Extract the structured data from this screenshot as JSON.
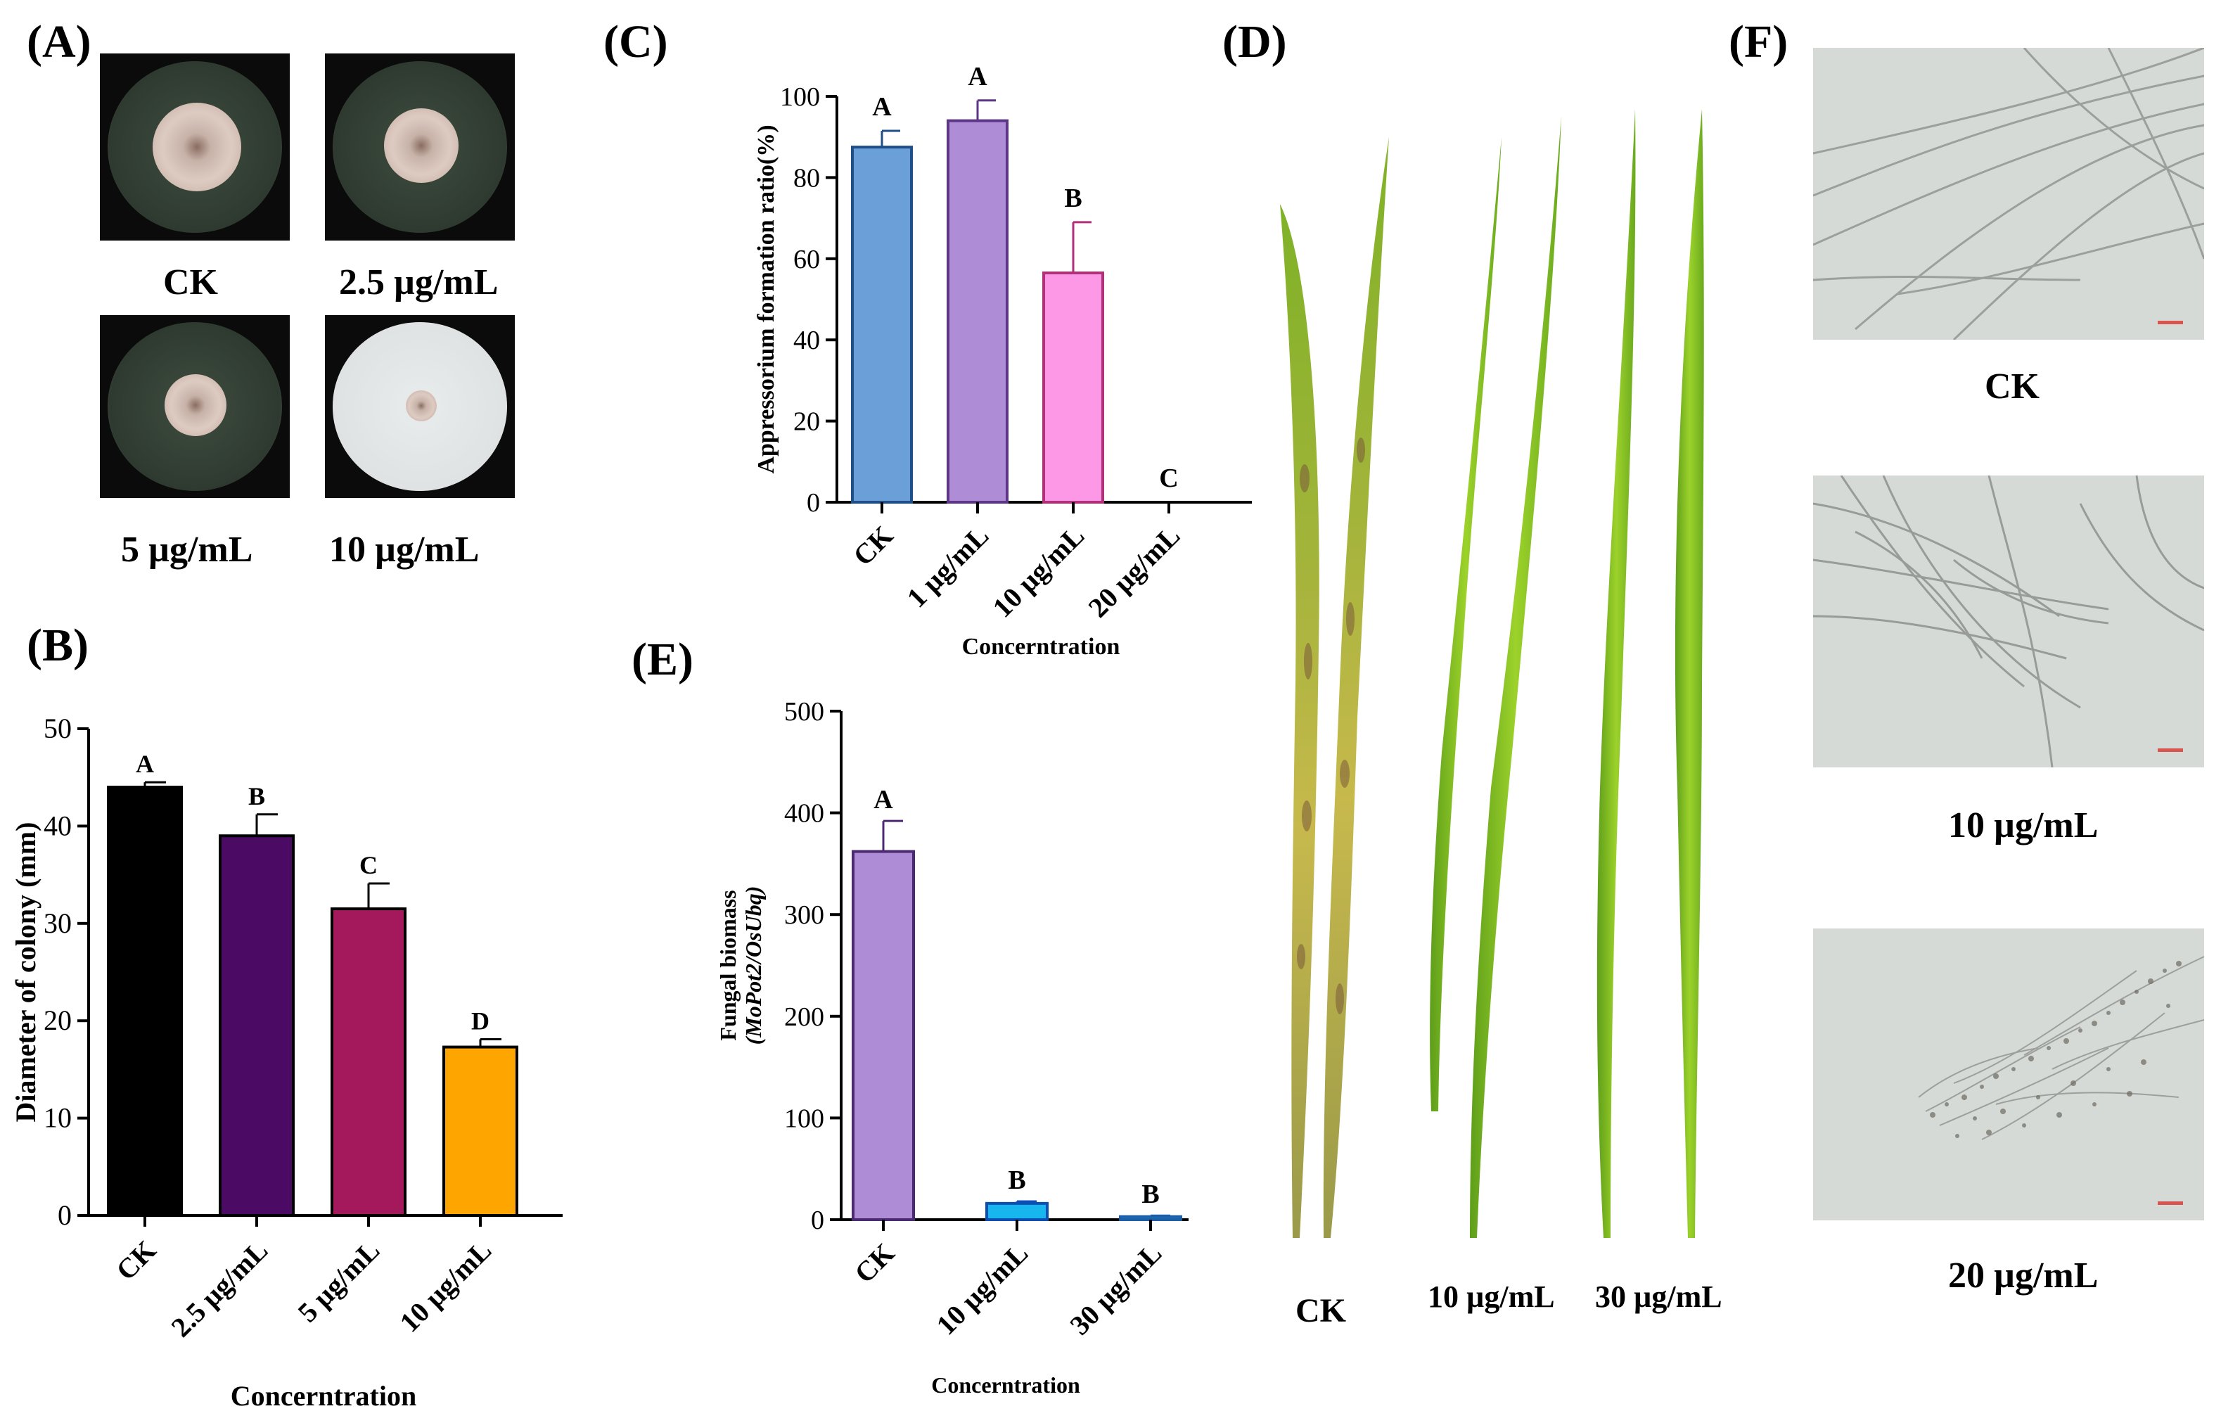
{
  "panels": {
    "a": {
      "label": "(A)",
      "captions": [
        "CK",
        "2.5 µg/mL",
        "5 µg/mL",
        "10 µg/mL"
      ]
    },
    "b": {
      "label": "(B)"
    },
    "c": {
      "label": "(C)"
    },
    "d": {
      "label": "(D)",
      "captions": [
        "CK",
        "10 µg/mL",
        "30 µg/mL"
      ]
    },
    "e": {
      "label": "(E)"
    },
    "f": {
      "label": "(F)",
      "captions": [
        "CK",
        "10 µg/mL",
        "20 µg/mL"
      ]
    }
  },
  "colors": {
    "b": [
      "#000000",
      "#4b0a63",
      "#a3195b",
      "#ffa500"
    ],
    "c": [
      "#6a9fd8",
      "#ae8cd6",
      "#fd98e6",
      "#ffffff"
    ],
    "c_edges": [
      "#1f4f86",
      "#5d3685",
      "#b0307a",
      "#333333"
    ],
    "e": [
      "#ae8cd6",
      "#17b6ef",
      "#1fa4d6"
    ],
    "e_edges": [
      "#4c2a73",
      "#0c4fb3",
      "#1c5fa8"
    ]
  },
  "chart_data": [
    {
      "id": "b",
      "type": "bar",
      "categories": [
        "CK",
        "2.5 µg/mL",
        "5 µg/mL",
        "10 µg/mL"
      ],
      "values": [
        44,
        39,
        31.5,
        17.3
      ],
      "errors": [
        0.5,
        2.2,
        2.6,
        0.8
      ],
      "letters": [
        "A",
        "B",
        "C",
        "D"
      ],
      "ylabel": "Diameter of colony (mm)",
      "xlabel": "Concerntration",
      "ylim": [
        0,
        50
      ],
      "yticks": [
        0,
        10,
        20,
        30,
        40,
        50
      ]
    },
    {
      "id": "c",
      "type": "bar",
      "categories": [
        "CK",
        "1 µg/mL",
        "10 µg/mL",
        "20 µg/mL"
      ],
      "values": [
        87.5,
        94,
        56.5,
        0
      ],
      "errors": [
        4,
        5,
        12.5,
        0
      ],
      "letters": [
        "A",
        "A",
        "B",
        "C"
      ],
      "ylabel": "Appressorium formation ratio(%)",
      "xlabel": "Concerntration",
      "ylim": [
        0,
        100
      ],
      "yticks": [
        0,
        20,
        40,
        60,
        80,
        100
      ]
    },
    {
      "id": "e",
      "type": "bar",
      "categories": [
        "CK",
        "10 µg/mL",
        "30 µg/mL"
      ],
      "values": [
        362,
        16,
        3
      ],
      "errors": [
        30,
        2,
        1
      ],
      "letters": [
        "A",
        "B",
        "B"
      ],
      "ylabel": "Fungal biomass",
      "ylabel2": "(MoPot2/OsUbq)",
      "xlabel": "Concerntration",
      "ylim": [
        0,
        500
      ],
      "yticks": [
        0,
        100,
        200,
        300,
        400,
        500
      ]
    }
  ]
}
